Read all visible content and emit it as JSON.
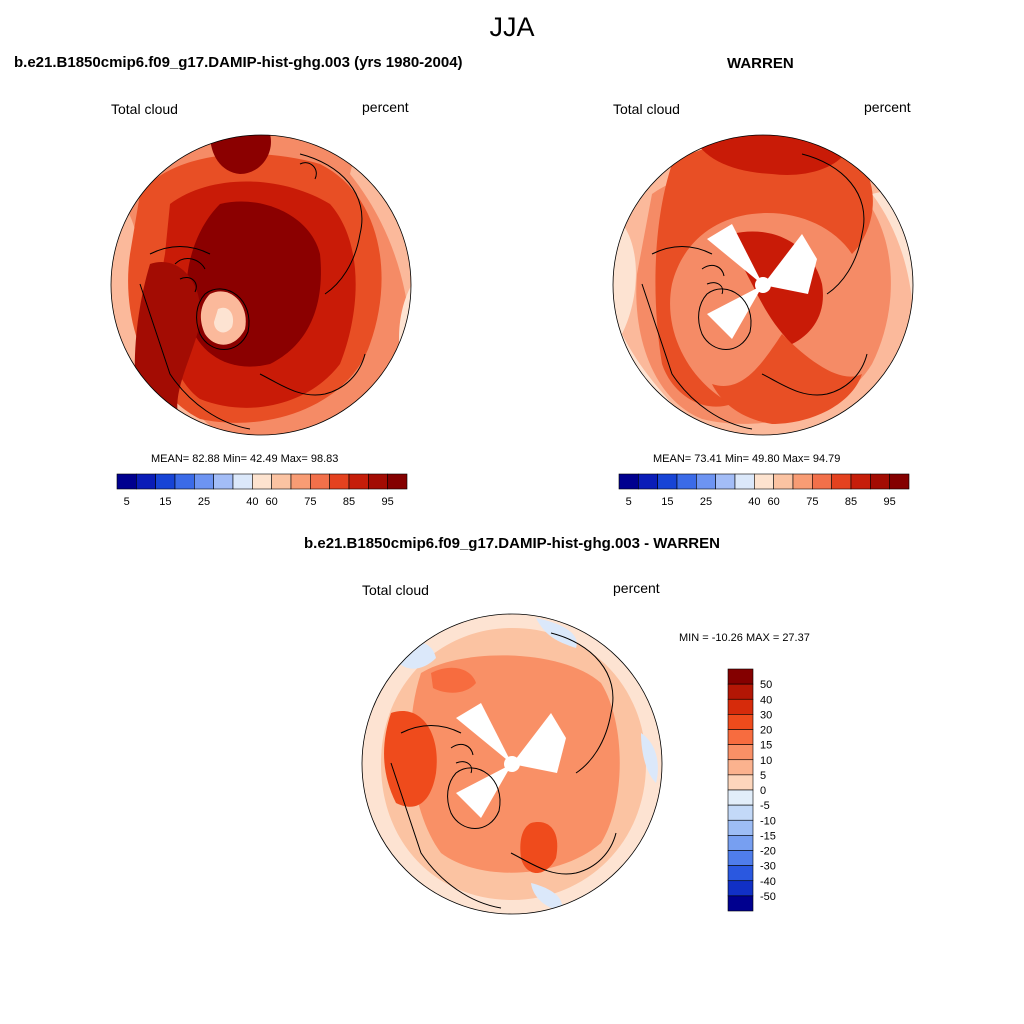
{
  "figure": {
    "title": "JJA"
  },
  "panels": [
    {
      "title": "b.e21.B1850cmip6.f09_g17.DAMIP-hist-ghg.003 (yrs 1980-2004)",
      "left_label": "Total cloud",
      "right_label": "percent",
      "stats": {
        "text": "MEAN=  82.88  Min=  42.49  Max=  98.83",
        "mean": 82.88,
        "min": 42.49,
        "max": 98.83
      },
      "colorbar": {
        "tick_labels": [
          "5",
          "15",
          "25",
          "40",
          "60",
          "75",
          "85",
          "95"
        ],
        "colors": [
          "#00008f",
          "#0a1db8",
          "#1744d6",
          "#3b6be8",
          "#6d94f2",
          "#a3bdf7",
          "#dbe8fa",
          "#fde3cf",
          "#fbc3a2",
          "#f89c74",
          "#f2704a",
          "#e4421f",
          "#c61e0a",
          "#a30c03",
          "#840000"
        ]
      }
    },
    {
      "title": "WARREN",
      "left_label": "Total cloud",
      "right_label": "percent",
      "stats": {
        "text": "MEAN=  73.41  Min=  49.80  Max=  94.79",
        "mean": 73.41,
        "min": 49.8,
        "max": 94.79
      },
      "colorbar": {
        "tick_labels": [
          "5",
          "15",
          "25",
          "40",
          "60",
          "75",
          "85",
          "95"
        ],
        "colors": [
          "#00008f",
          "#0a1db8",
          "#1744d6",
          "#3b6be8",
          "#6d94f2",
          "#a3bdf7",
          "#dbe8fa",
          "#fde3cf",
          "#fbc3a2",
          "#f89c74",
          "#f2704a",
          "#e4421f",
          "#c61e0a",
          "#a30c03",
          "#840000"
        ]
      }
    },
    {
      "title": "b.e21.B1850cmip6.f09_g17.DAMIP-hist-ghg.003 - WARREN",
      "left_label": "Total cloud",
      "right_label": "percent",
      "stats": {
        "text": "MIN = -10.26 MAX =  27.37",
        "min": -10.26,
        "max": 27.37
      },
      "colorbar": {
        "tick_labels": [
          "50",
          "40",
          "30",
          "20",
          "15",
          "10",
          "5",
          "0",
          "-5",
          "-10",
          "-15",
          "-20",
          "-30",
          "-40",
          "-50"
        ],
        "colors": [
          "#840000",
          "#b31605",
          "#d62b0b",
          "#ef4b1c",
          "#f76c3f",
          "#f99066",
          "#fbb28e",
          "#fdd6bc",
          "#e2eefa",
          "#c3d9f8",
          "#9dbdf5",
          "#779ff1",
          "#4f7deb",
          "#2a58e0",
          "#1130c6",
          "#00008f"
        ]
      }
    }
  ],
  "colors": {
    "dark_red": "#8b0000",
    "red": "#c91b07",
    "orange_red": "#e84f25",
    "salmon": "#f58b66",
    "light_salmon": "#fbb99b",
    "pale": "#fde3d2",
    "light_blue": "#dbe8fa",
    "land_outline": "#000000"
  }
}
